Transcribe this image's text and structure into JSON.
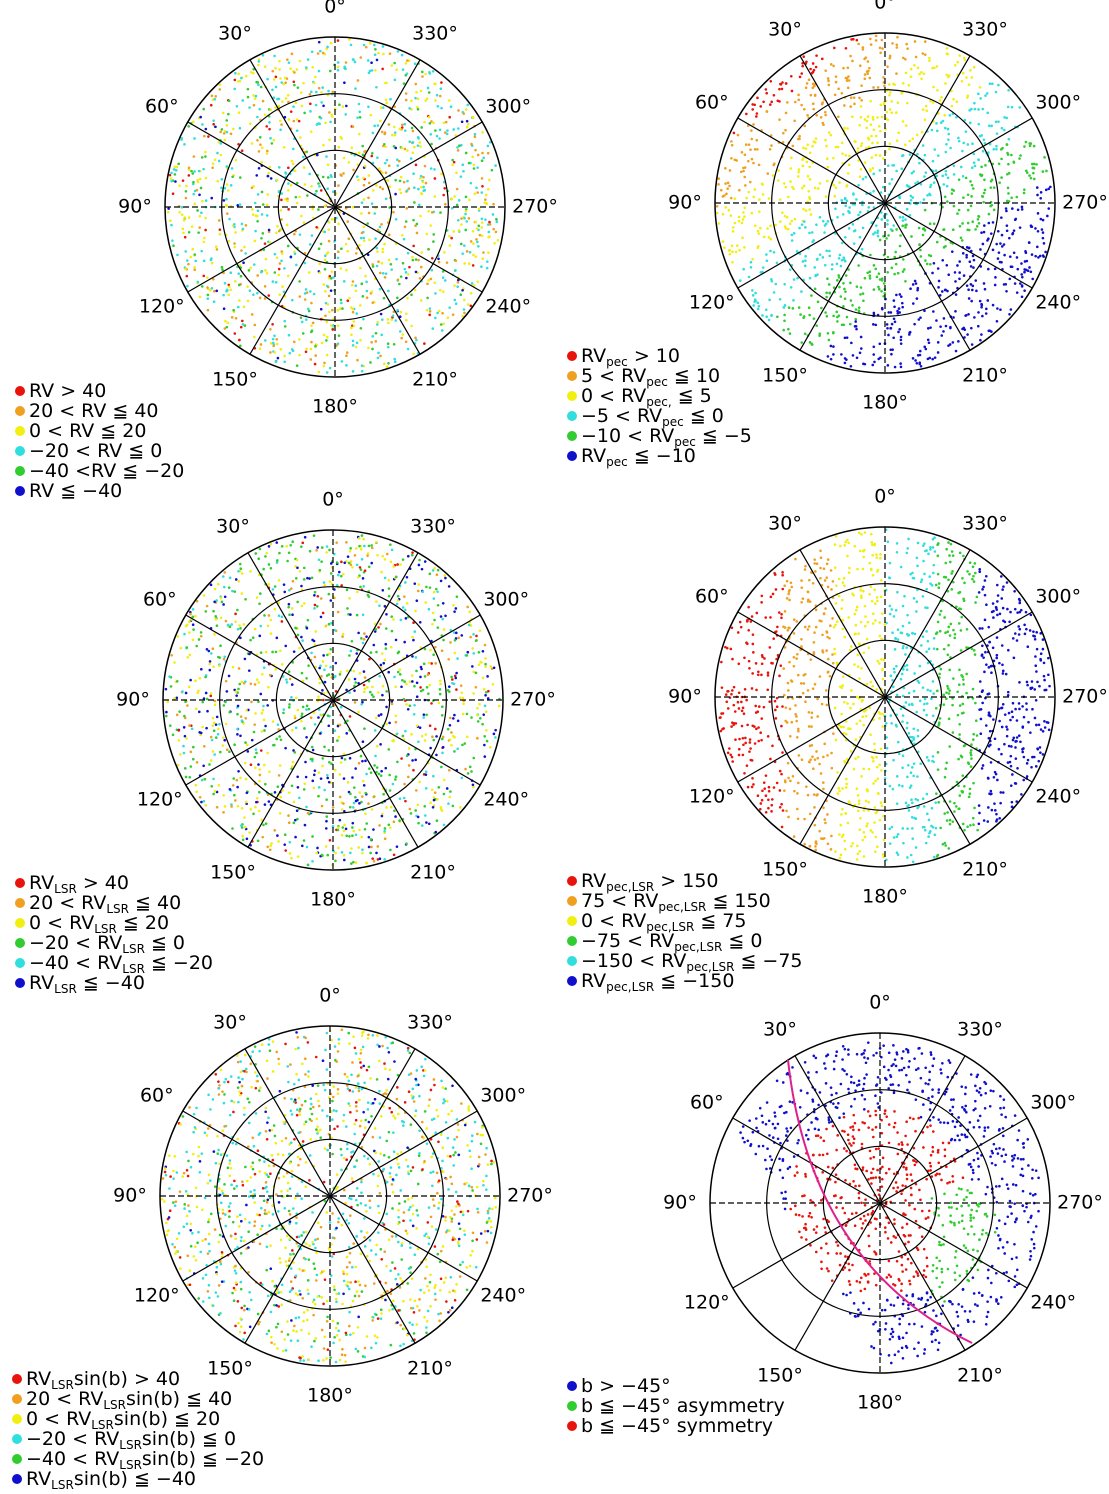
{
  "angle_labels": [
    "0°",
    "30°",
    "60°",
    "90°",
    "120°",
    "150°",
    "180°",
    "210°",
    "240°",
    "270°",
    "300°",
    "330°"
  ],
  "panels": [
    {
      "legend": [
        {
          "text": "RV > 40",
          "color": "#e8140c"
        },
        {
          "text": "20 < RV ≦ 40",
          "color": "#f0a020"
        },
        {
          "text": "0 < RV ≦ 20",
          "color": "#f2ee10"
        },
        {
          "text": "−20 < RV ≦ 0",
          "color": "#30dede"
        },
        {
          "text": "−40 <RV ≦ −20",
          "color": "#30cc30"
        },
        {
          "text": "RV ≦ −40",
          "color": "#1010cc"
        }
      ]
    },
    {
      "legend": [
        {
          "text": "RV",
          "sub": "pec",
          "after": " > 10",
          "color": "#e8140c"
        },
        {
          "text": "5 < RV",
          "sub": "pec",
          "after": " ≦ 10",
          "color": "#f0a020"
        },
        {
          "text": "0 < RV",
          "sub": "pec,",
          "after": " ≦ 5",
          "color": "#f2ee10"
        },
        {
          "text": "−5 < RV",
          "sub": "pec",
          "after": " ≦ 0",
          "color": "#30dede"
        },
        {
          "text": "−10 < RV",
          "sub": "pec",
          "after": " ≦ −5",
          "color": "#30cc30"
        },
        {
          "text": "RV",
          "sub": "pec",
          "after": " ≦ −10",
          "color": "#1010cc"
        }
      ]
    },
    {
      "legend": [
        {
          "text": "RV",
          "sub": "LSR",
          "after": " > 40",
          "color": "#e8140c"
        },
        {
          "text": "20 < RV",
          "sub": "LSR",
          "after": " ≦ 40",
          "color": "#f0a020"
        },
        {
          "text": "0 < RV",
          "sub": "LSR",
          "after": " ≦ 20",
          "color": "#f2ee10"
        },
        {
          "text": "−20 < RV",
          "sub": "LSR",
          "after": " ≦ 0",
          "color": "#30cc30"
        },
        {
          "text": "−40 < RV",
          "sub": "LSR",
          "after": " ≦ −20",
          "color": "#30dede"
        },
        {
          "text": "RV",
          "sub": "LSR",
          "after": " ≦ −40",
          "color": "#1010cc"
        }
      ]
    },
    {
      "legend": [
        {
          "text": "RV",
          "sub": "pec,LSR",
          "after": " > 150",
          "color": "#e8140c"
        },
        {
          "text": "75 < RV",
          "sub": "pec,LSR",
          "after": " ≦ 150",
          "color": "#f0a020"
        },
        {
          "text": "0 < RV",
          "sub": "pec,LSR",
          "after": " ≦ 75",
          "color": "#f2ee10"
        },
        {
          "text": "−75 < RV",
          "sub": "pec,LSR",
          "after": " ≦ 0",
          "color": "#30cc30"
        },
        {
          "text": "−150 < RV",
          "sub": "pec,LSR",
          "after": " ≦ −75",
          "color": "#30dede"
        },
        {
          "text": "RV",
          "sub": "pec,LSR",
          "after": " ≦ −150",
          "color": "#1010cc"
        }
      ]
    },
    {
      "legend": [
        {
          "text": "RV",
          "sub": "LSR",
          "after": "sin(b) > 40",
          "color": "#e8140c"
        },
        {
          "text": "20 < RV",
          "sub": "LSR",
          "after": "sin(b) ≦ 40",
          "color": "#f0a020"
        },
        {
          "text": "0 < RV",
          "sub": "LSR",
          "after": "sin(b) ≦ 20",
          "color": "#f2ee10"
        },
        {
          "text": "−20 < RV",
          "sub": "LSR",
          "after": "sin(b) ≦ 0",
          "color": "#30dede"
        },
        {
          "text": "−40 < RV",
          "sub": "LSR",
          "after": "sin(b) ≦ −20",
          "color": "#30cc30"
        },
        {
          "text": "RV",
          "sub": "LSR",
          "after": "sin(b) ≦ −40",
          "color": "#1010cc"
        }
      ]
    },
    {
      "legend": [
        {
          "text": "b > −45°",
          "color": "#1010cc"
        },
        {
          "text": "b ≦ −45° asymmetry",
          "color": "#30cc30"
        },
        {
          "text": "b ≦ −45° symmetry",
          "color": "#e8140c"
        }
      ]
    }
  ]
}
